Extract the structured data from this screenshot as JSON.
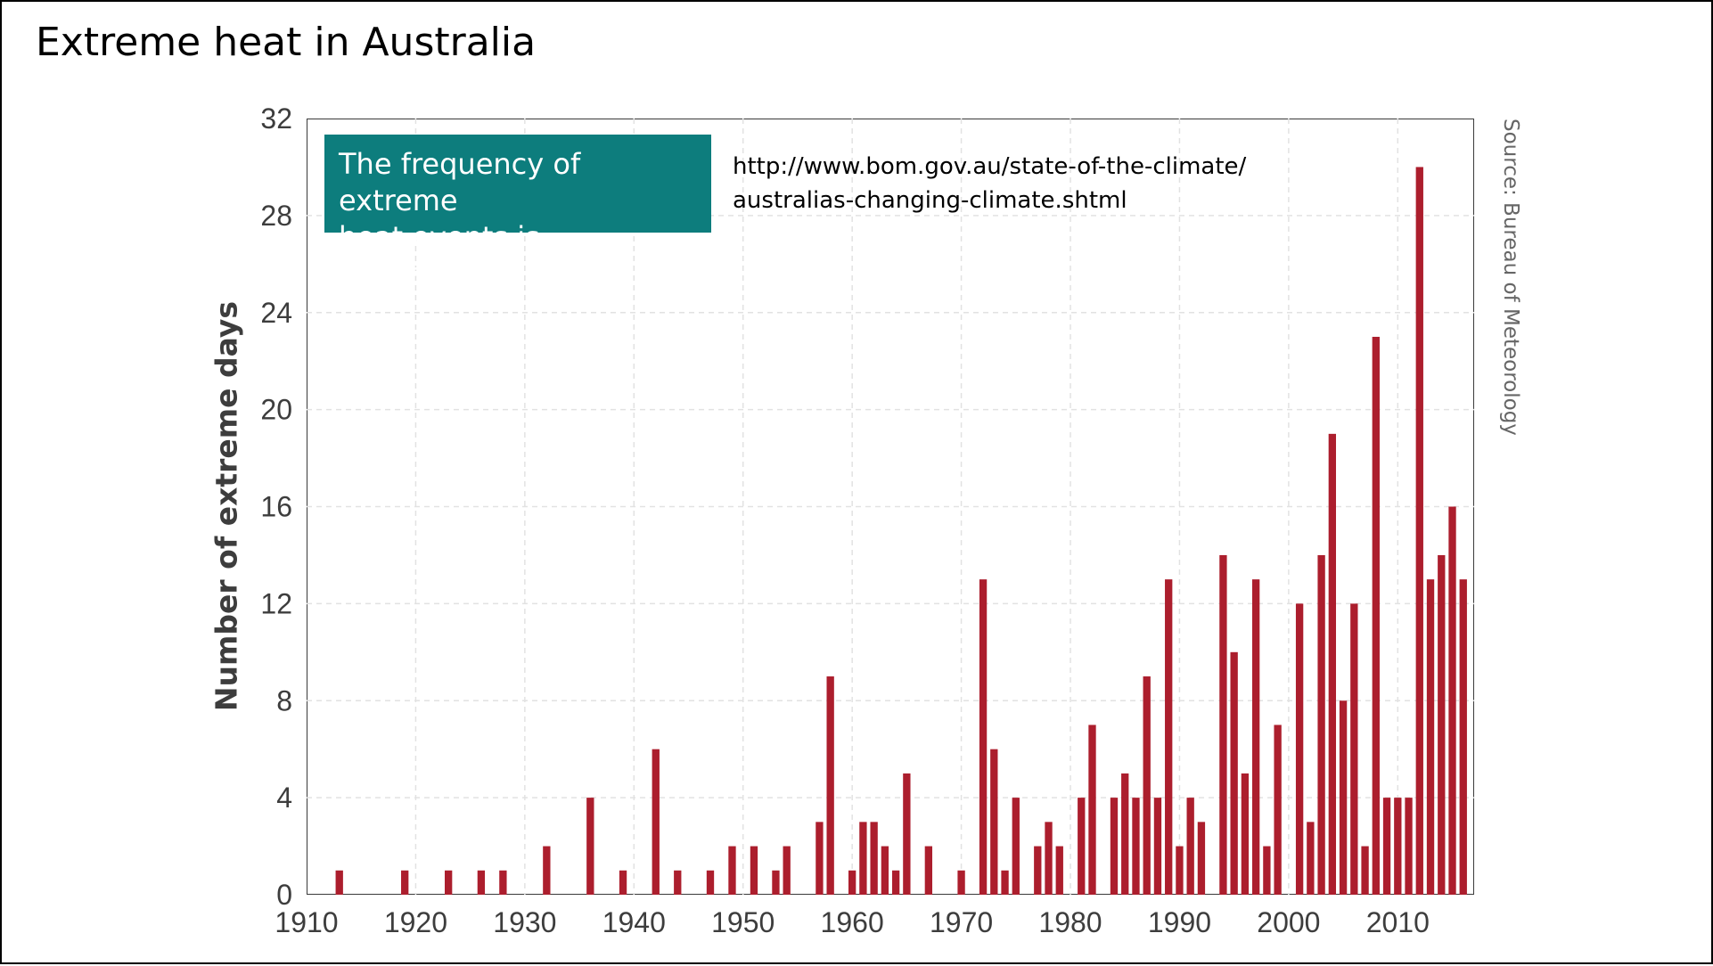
{
  "title": "Extreme heat in Australia",
  "callout": {
    "line1": "The frequency of extreme",
    "line2": "heat events is increasing."
  },
  "url": {
    "line1": "http://www.bom.gov.au/state-of-the-climate/",
    "line2": "australias-changing-climate.shtml"
  },
  "source": "Source: Bureau of Meteorology",
  "colors": {
    "bar": "#ac1e2d",
    "callout_bg": "#0d7d7d",
    "grid": "#e2e2e2"
  },
  "chart_data": {
    "type": "bar",
    "ylabel": "Number of extreme days",
    "xlim": [
      1910,
      2017
    ],
    "ylim": [
      0,
      32
    ],
    "xticks": [
      1910,
      1920,
      1930,
      1940,
      1950,
      1960,
      1970,
      1980,
      1990,
      2000,
      2010
    ],
    "yticks": [
      0,
      4,
      8,
      12,
      16,
      20,
      24,
      28,
      32
    ],
    "grid": true,
    "categories": [
      1913,
      1919,
      1923,
      1926,
      1928,
      1932,
      1936,
      1939,
      1942,
      1944,
      1947,
      1949,
      1951,
      1953,
      1954,
      1957,
      1958,
      1960,
      1961,
      1962,
      1963,
      1964,
      1965,
      1967,
      1970,
      1972,
      1973,
      1974,
      1975,
      1977,
      1978,
      1979,
      1981,
      1982,
      1984,
      1985,
      1986,
      1987,
      1988,
      1989,
      1990,
      1991,
      1992,
      1994,
      1995,
      1996,
      1997,
      1998,
      1999,
      2001,
      2002,
      2003,
      2004,
      2005,
      2006,
      2007,
      2008,
      2009,
      2010,
      2011,
      2012,
      2013,
      2014,
      2015,
      2016
    ],
    "values": [
      1,
      1,
      1,
      1,
      1,
      2,
      4,
      1,
      6,
      1,
      1,
      2,
      2,
      1,
      2,
      3,
      9,
      1,
      3,
      3,
      2,
      1,
      5,
      2,
      1,
      13,
      6,
      1,
      4,
      2,
      3,
      2,
      4,
      7,
      4,
      5,
      4,
      9,
      4,
      13,
      2,
      4,
      3,
      14,
      10,
      5,
      13,
      2,
      7,
      12,
      3,
      14,
      19,
      8,
      12,
      2,
      23,
      4,
      4,
      4,
      30,
      13,
      14,
      16,
      13
    ]
  }
}
